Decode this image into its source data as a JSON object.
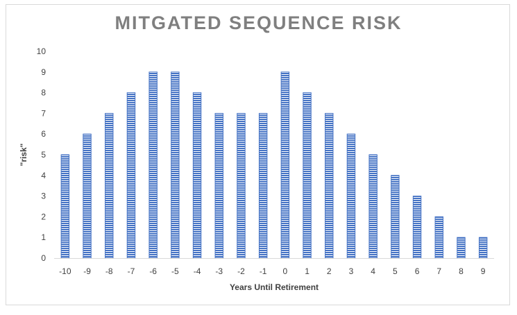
{
  "chart_data": {
    "type": "bar",
    "title": "MITGATED SEQUENCE RISK",
    "xlabel": "Years Until Retirement",
    "ylabel": "\"risk\"",
    "categories": [
      "-10",
      "-9",
      "-8",
      "-7",
      "-6",
      "-5",
      "-4",
      "-3",
      "-2",
      "-1",
      "0",
      "1",
      "2",
      "3",
      "4",
      "5",
      "6",
      "7",
      "8",
      "9"
    ],
    "values": [
      5,
      6,
      7,
      8,
      9,
      9,
      8,
      7,
      7,
      7,
      9,
      8,
      7,
      6,
      5,
      4,
      3,
      2,
      1,
      1
    ],
    "ylim": [
      0,
      10
    ],
    "yticks": [
      0,
      1,
      2,
      3,
      4,
      5,
      6,
      7,
      8,
      9,
      10
    ],
    "grid": false,
    "legend": "none",
    "bar_color": "#4472c4",
    "bar_pattern": "horizontal-lines"
  }
}
